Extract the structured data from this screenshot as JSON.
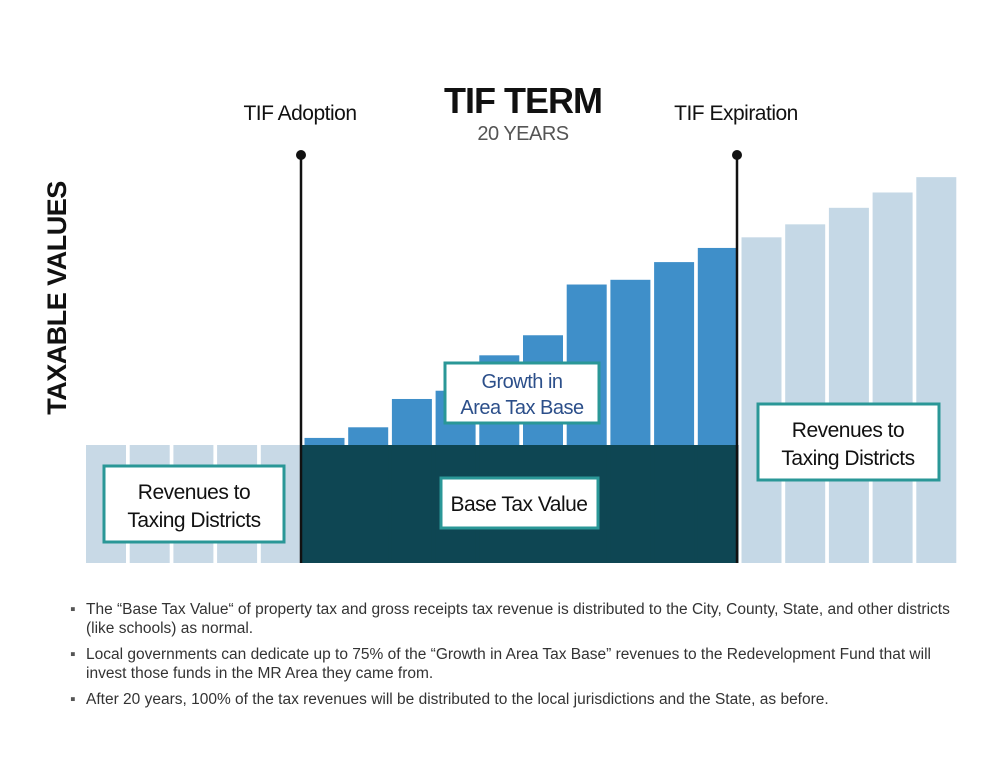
{
  "title": "TIF TERM",
  "subtitle": "20 YEARS",
  "y_axis_label": "TAXABLE VALUES",
  "markers": {
    "adoption": "TIF Adoption",
    "expiration": "TIF Expiration"
  },
  "boxes": {
    "before": [
      "Revenues to",
      "Taxing Districts"
    ],
    "growth": [
      "Growth in",
      "Area Tax Base"
    ],
    "base": [
      "Base Tax Value"
    ],
    "after": [
      "Revenues to",
      "Taxing Districts"
    ]
  },
  "colors": {
    "before_bar": "#c8d9e6",
    "base_dark": "#0e4653",
    "growth_blue": "#3f8fc9",
    "after_bar": "#c5d8e6",
    "box_border": "#2a9797",
    "title_sub": "#555555"
  },
  "chart_data": {
    "type": "bar",
    "note": "Stacked bars: base tax value constant; growth portion increases over TIF term",
    "base_value": 1,
    "before_bars": [
      1,
      1,
      1,
      1,
      1
    ],
    "during_growth": [
      0.06,
      0.15,
      0.39,
      0.46,
      0.76,
      0.93,
      1.36,
      1.4,
      1.55,
      1.67
    ],
    "after_totals": [
      2.76,
      2.87,
      3.01,
      3.14,
      3.27
    ]
  },
  "bullets": [
    "The  “Base Tax Value“ of property tax and gross receipts tax revenue is distributed to the City, County, State, and other districts (like schools) as normal.",
    "Local governments can dedicate up to 75% of the  “Growth in Area Tax Base” revenues to the Redevelopment Fund that will invest those funds in the MR Area they came from.",
    "After 20 years, 100% of the tax revenues will be distributed to the local jurisdictions and the State, as before."
  ],
  "bullet_symbol": "▪"
}
